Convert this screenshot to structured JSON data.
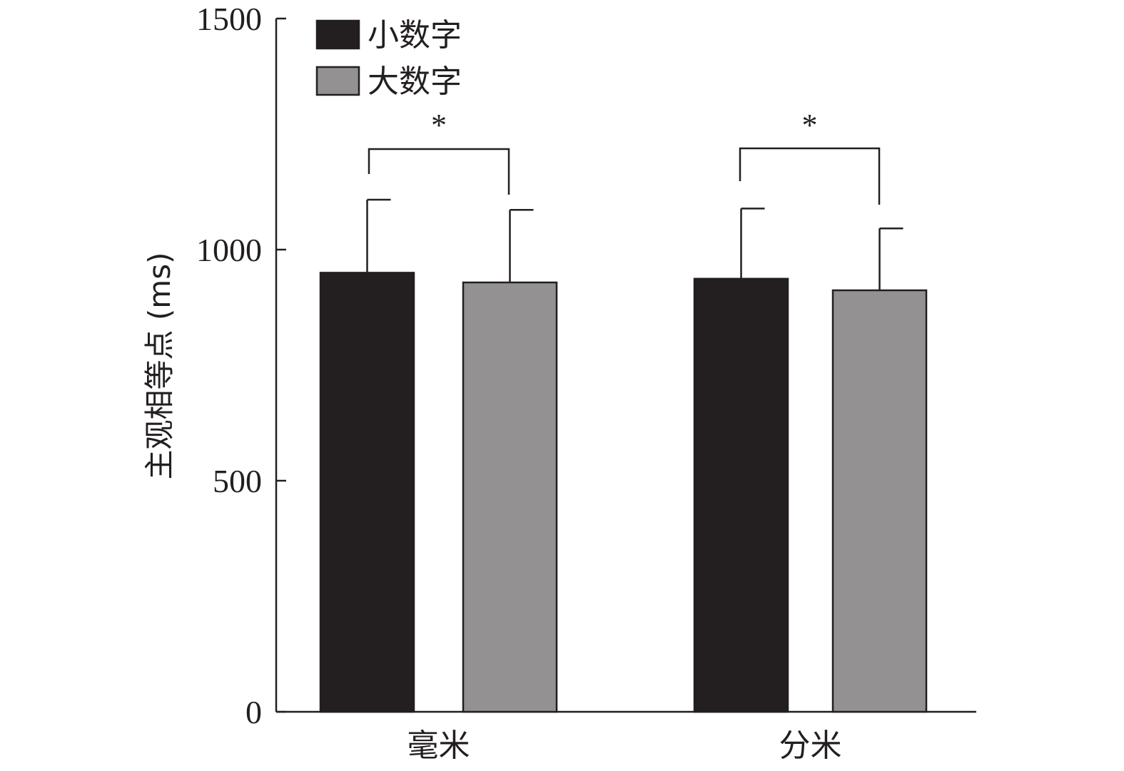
{
  "chart_data": {
    "type": "bar",
    "categories": [
      "毫米",
      "分米"
    ],
    "series": [
      {
        "name": "小数字",
        "values": [
          950,
          937
        ],
        "errors": [
          158,
          152
        ],
        "color": "#231f20"
      },
      {
        "name": "大数字",
        "values": [
          929,
          912
        ],
        "errors": [
          157,
          134
        ],
        "color": "#939192"
      }
    ],
    "ylabel": "主观相等点 (ms)",
    "ylim": [
      0,
      1500
    ],
    "yticks": [
      0,
      500,
      1000,
      1500
    ],
    "legend_position": "top-left",
    "grid": false,
    "significance": [
      {
        "category": "毫米",
        "label": "*"
      },
      {
        "category": "分米",
        "label": "*"
      }
    ]
  }
}
